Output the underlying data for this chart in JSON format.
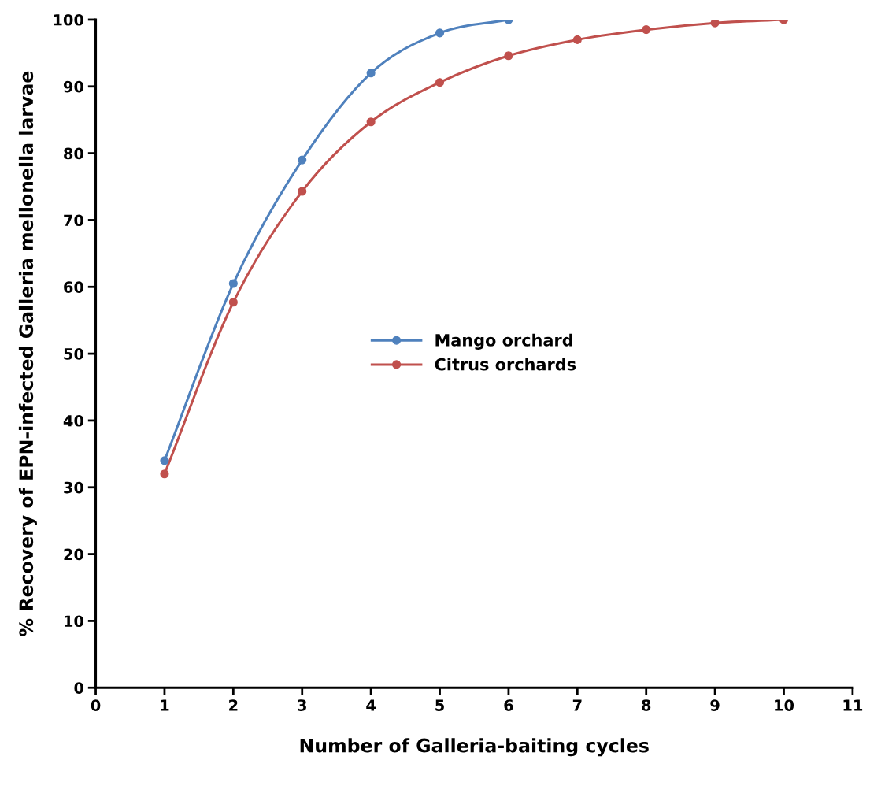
{
  "chart_data": {
    "type": "line",
    "xlabel": "Number of Galleria-baiting cycles",
    "ylabel": "% Recovery of EPN-infected Galleria mellonella larvae",
    "series": [
      {
        "name": "Mango orchard",
        "color": "#4f81bd",
        "x": [
          1,
          2,
          3,
          4,
          5,
          6
        ],
        "values": [
          34,
          60.5,
          79,
          92,
          98,
          100
        ]
      },
      {
        "name": "Citrus orchards",
        "color": "#c0504d",
        "x": [
          1,
          2,
          3,
          4,
          5,
          6,
          7,
          8,
          9,
          10
        ],
        "values": [
          32,
          57.7,
          74.3,
          84.7,
          90.6,
          94.6,
          97,
          98.5,
          99.5,
          100
        ]
      }
    ],
    "xlim": [
      0,
      11
    ],
    "xticks": [
      0,
      1,
      2,
      3,
      4,
      5,
      6,
      7,
      8,
      9,
      10,
      11
    ],
    "ylim": [
      0,
      100
    ],
    "yticks": [
      0,
      10,
      20,
      30,
      40,
      50,
      60,
      70,
      80,
      90,
      100
    ],
    "grid": false,
    "legend": "center",
    "marker": "circle",
    "line_style": "solid"
  }
}
